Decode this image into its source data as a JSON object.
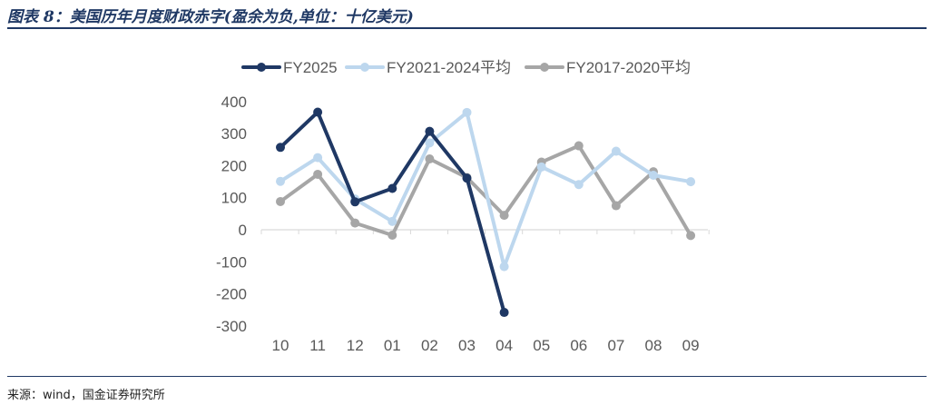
{
  "header": {
    "title": "图表 8：美国历年月度财政赤字(盈余为负,单位：十亿美元)"
  },
  "footer": {
    "source": "来源：wind，国金证券研究所"
  },
  "chart_data": {
    "type": "line",
    "title": "",
    "xlabel": "",
    "ylabel": "",
    "categories": [
      "10",
      "11",
      "12",
      "01",
      "02",
      "03",
      "04",
      "05",
      "06",
      "07",
      "08",
      "09"
    ],
    "ylim": [
      -300,
      400
    ],
    "yticks": [
      -300,
      -200,
      -100,
      0,
      100,
      200,
      300,
      400
    ],
    "legend_position": "top",
    "series": [
      {
        "name": "FY2025",
        "color": "#1f3864",
        "values": [
          257,
          367,
          87,
          129,
          307,
          161,
          -258,
          null,
          null,
          null,
          null,
          null
        ]
      },
      {
        "name": "FY2021-2024平均",
        "color": "#bdd7ee",
        "values": [
          151,
          225,
          96,
          26,
          271,
          366,
          -115,
          196,
          141,
          245,
          170,
          150
        ]
      },
      {
        "name": "FY2017-2020平均",
        "color": "#a6a6a6",
        "values": [
          88,
          173,
          21,
          -17,
          221,
          163,
          45,
          211,
          262,
          75,
          181,
          -18
        ]
      }
    ]
  }
}
